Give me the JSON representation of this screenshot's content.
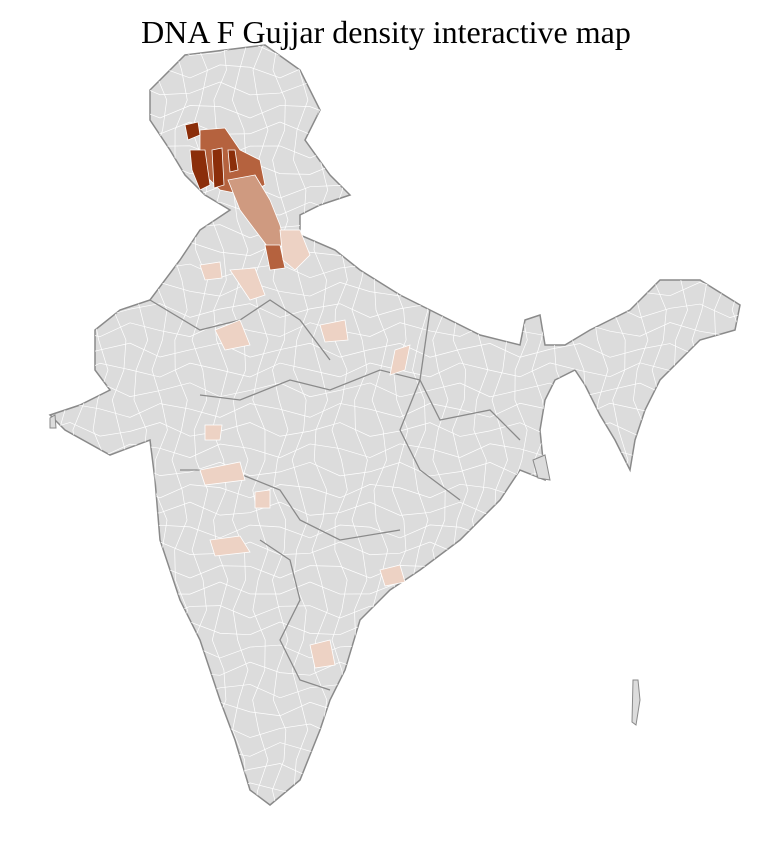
{
  "title": "DNA F Gujjar density interactive map",
  "map": {
    "region": "India districts",
    "base_color": "#dcdcdc",
    "border_color": "#ffffff",
    "state_border_color": "#8a8a8a",
    "density_colors": {
      "very_high": "#8b2e0a",
      "high": "#b5623e",
      "medium": "#cf9a80",
      "low": "#edd2c4"
    }
  }
}
